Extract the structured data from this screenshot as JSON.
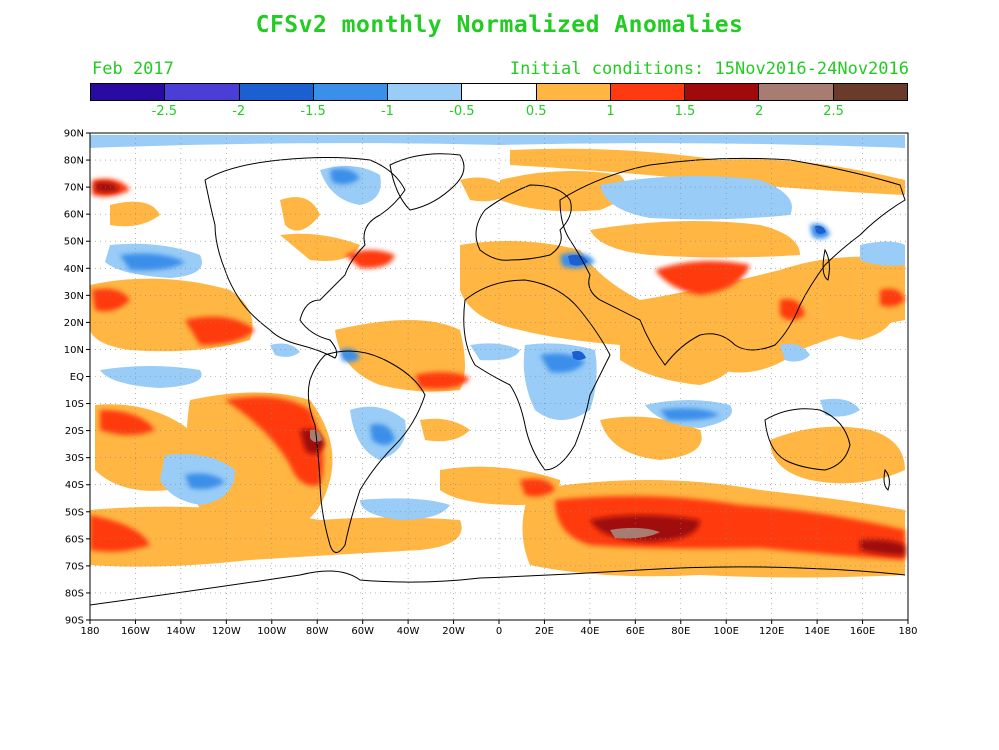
{
  "title": "CFSv2 monthly Normalized Anomalies",
  "valid_month": "Feb 2017",
  "initial_conditions": "Initial conditions: 15Nov2016-24Nov2016",
  "colorbar": {
    "colors": [
      "#2a0aa0",
      "#4a3ed6",
      "#1c5fd0",
      "#3a8fea",
      "#99ccf6",
      "#ffffff",
      "#ffb642",
      "#ff3a10",
      "#a00a0a",
      "#a87c70",
      "#6a3a2a"
    ],
    "labels": [
      "-2.5",
      "-2",
      "-1.5",
      "-1",
      "-0.5",
      "0.5",
      "1",
      "1.5",
      "2",
      "2.5"
    ]
  },
  "lat_labels": [
    "90N",
    "80N",
    "70N",
    "60N",
    "50N",
    "40N",
    "30N",
    "20N",
    "10N",
    "EQ",
    "10S",
    "20S",
    "30S",
    "40S",
    "50S",
    "60S",
    "70S",
    "80S",
    "90S"
  ],
  "lon_labels": [
    "180",
    "160W",
    "140W",
    "120W",
    "100W",
    "80W",
    "60W",
    "40W",
    "20W",
    "0",
    "20E",
    "40E",
    "60E",
    "80E",
    "100E",
    "120E",
    "140E",
    "160E",
    "180"
  ]
}
